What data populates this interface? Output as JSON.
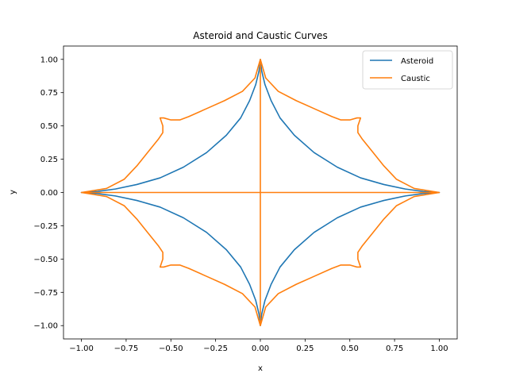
{
  "chart_data": {
    "type": "line",
    "title": "Asteroid and Caustic Curves",
    "xlabel": "x",
    "ylabel": "y",
    "xlim": [
      -1.1,
      1.1
    ],
    "ylim": [
      -1.1,
      1.1
    ],
    "xticks": [
      -1.0,
      -0.75,
      -0.5,
      -0.25,
      0.0,
      0.25,
      0.5,
      0.75,
      1.0
    ],
    "yticks": [
      -1.0,
      -0.75,
      -0.5,
      -0.25,
      0.0,
      0.25,
      0.5,
      0.75,
      1.0
    ],
    "xtick_labels": [
      "−1.00",
      "−0.75",
      "−0.50",
      "−0.25",
      "0.00",
      "0.25",
      "0.50",
      "0.75",
      "1.00"
    ],
    "ytick_labels": [
      "−1.00",
      "−0.75",
      "−0.50",
      "−0.25",
      "0.00",
      "0.25",
      "0.50",
      "0.75",
      "1.00"
    ],
    "grid": false,
    "legend_position": "top-right",
    "series": [
      {
        "name": "Asteroid",
        "color": "#1f77b4",
        "curve": "x = cos^3(t), y = sin^3(t)",
        "points": [
          [
            1.0,
            0.0
          ],
          [
            0.976,
            0.001
          ],
          [
            0.91,
            0.008
          ],
          [
            0.81,
            0.026
          ],
          [
            0.69,
            0.06
          ],
          [
            0.56,
            0.11
          ],
          [
            0.43,
            0.19
          ],
          [
            0.3,
            0.3
          ],
          [
            0.19,
            0.43
          ],
          [
            0.11,
            0.56
          ],
          [
            0.06,
            0.69
          ],
          [
            0.026,
            0.81
          ],
          [
            0.008,
            0.91
          ],
          [
            0.001,
            0.976
          ],
          [
            0.0,
            1.0
          ]
        ]
      },
      {
        "name": "Caustic",
        "color": "#ff7f0e",
        "points": [
          [
            0.0,
            1.0
          ],
          [
            0.03,
            0.86
          ],
          [
            0.1,
            0.76
          ],
          [
            0.2,
            0.69
          ],
          [
            0.3,
            0.63
          ],
          [
            0.4,
            0.57
          ],
          [
            0.45,
            0.545
          ],
          [
            0.5,
            0.545
          ],
          [
            0.54,
            0.56
          ],
          [
            0.56,
            0.56
          ],
          [
            0.545,
            0.5
          ],
          [
            0.545,
            0.45
          ],
          [
            0.57,
            0.4
          ],
          [
            0.63,
            0.3
          ],
          [
            0.69,
            0.2
          ],
          [
            0.76,
            0.1
          ],
          [
            0.86,
            0.03
          ],
          [
            1.0,
            0.0
          ]
        ]
      }
    ]
  }
}
